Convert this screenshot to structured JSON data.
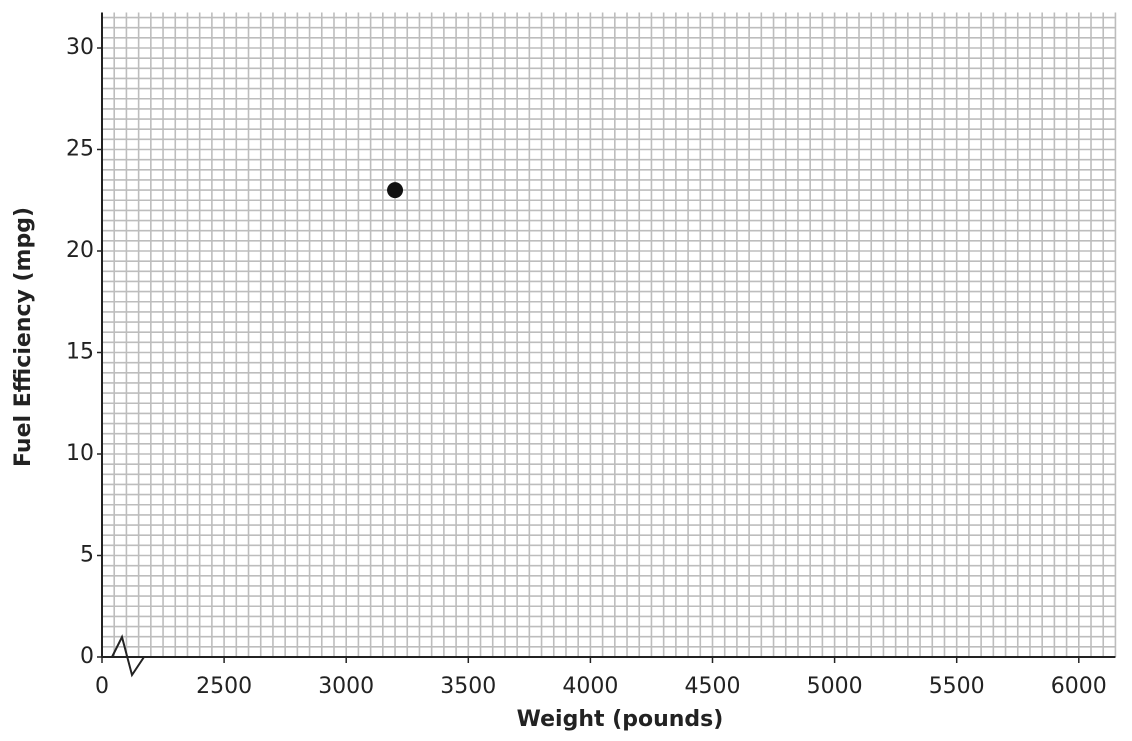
{
  "chart_data": {
    "type": "scatter",
    "x_label": "Weight (pounds)",
    "y_label": "Fuel Efficiency (mpg)",
    "x": [
      3200
    ],
    "values": [
      23
    ],
    "color": "#111111",
    "xlim": [
      0,
      6150
    ],
    "xbreak": [
      0,
      2000
    ],
    "xticks": [
      0,
      2500,
      3000,
      3500,
      4000,
      4500,
      5000,
      5500,
      6000
    ],
    "ylim": [
      0,
      31.75
    ],
    "yticks": [
      0,
      5,
      10,
      15,
      20,
      25,
      30
    ],
    "grid": true
  }
}
